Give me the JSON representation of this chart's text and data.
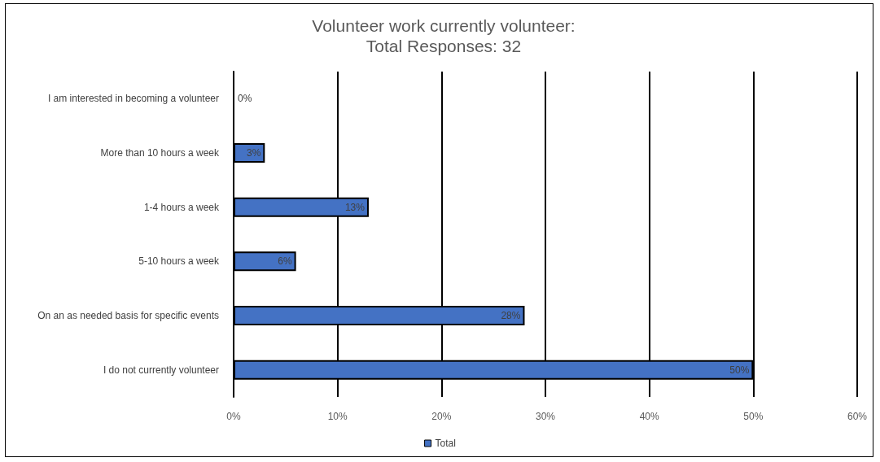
{
  "chart_data": {
    "type": "bar",
    "orientation": "horizontal",
    "title": "Volunteer work currently volunteer:\nTotal Responses: 32",
    "categories": [
      "I am interested in becoming a volunteer",
      "More than 10 hours a week",
      "1-4 hours a week",
      "5-10 hours a week",
      "On an as needed basis for specific events",
      "I do not currently volunteer"
    ],
    "series": [
      {
        "name": "Total",
        "color": "#4472c4",
        "values": [
          0,
          3,
          13,
          6,
          28,
          50
        ],
        "value_labels": [
          "0%",
          "3%",
          "13%",
          "6%",
          "28%",
          "50%"
        ]
      }
    ],
    "xlim": [
      0,
      60
    ],
    "xticks": [
      {
        "value": 0,
        "label": "0%"
      },
      {
        "value": 10,
        "label": "10%"
      },
      {
        "value": 20,
        "label": "20%"
      },
      {
        "value": 30,
        "label": "30%"
      },
      {
        "value": 40,
        "label": "40%"
      },
      {
        "value": 50,
        "label": "50%"
      },
      {
        "value": 60,
        "label": "60%"
      }
    ],
    "grid": "x",
    "legend": "bottom"
  }
}
